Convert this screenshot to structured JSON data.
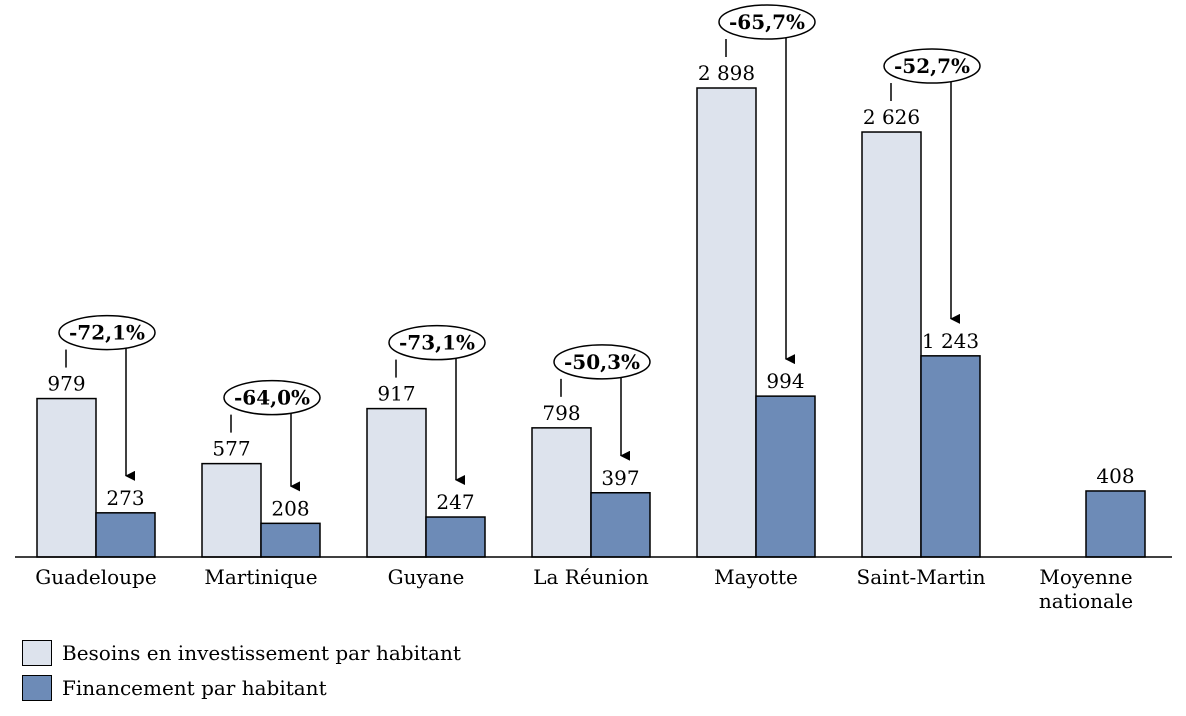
{
  "chart_data": {
    "type": "bar",
    "categories": [
      "Guadeloupe",
      "Martinique",
      "Guyane",
      "La Réunion",
      "Mayotte",
      "Saint-Martin",
      "Moyenne nationale"
    ],
    "category_lines": [
      [
        "Guadeloupe"
      ],
      [
        "Martinique"
      ],
      [
        "Guyane"
      ],
      [
        "La Réunion"
      ],
      [
        "Mayotte"
      ],
      [
        "Saint-Martin"
      ],
      [
        "Moyenne",
        "nationale"
      ]
    ],
    "series": [
      {
        "name": "Besoins en investissement par habitant",
        "values": [
          979,
          577,
          917,
          798,
          2898,
          2626,
          null
        ],
        "labels": [
          "979",
          "577",
          "917",
          "798",
          "2 898",
          "2 626",
          ""
        ],
        "color": "#dde3ed"
      },
      {
        "name": "Financement par habitant",
        "values": [
          273,
          208,
          247,
          397,
          994,
          1243,
          408
        ],
        "labels": [
          "273",
          "208",
          "247",
          "397",
          "994",
          "1 243",
          "408"
        ],
        "color": "#6d8bb7"
      }
    ],
    "annotations": [
      "-72,1%",
      "-64,0%",
      "-73,1%",
      "-50,3%",
      "-65,7%",
      "-52,7%",
      ""
    ],
    "ylim": [
      0,
      2898
    ],
    "grid": false,
    "legend_position": "bottom-left"
  }
}
